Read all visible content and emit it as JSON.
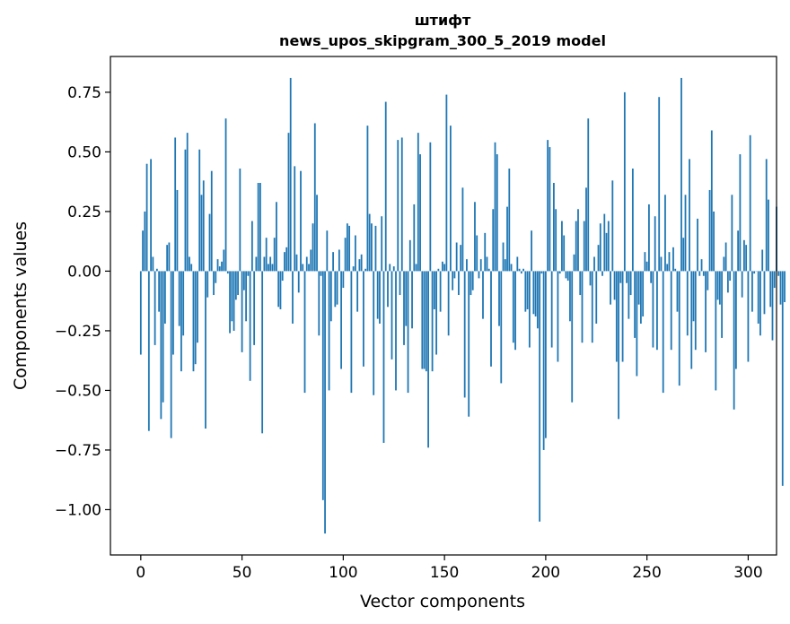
{
  "chart_data": {
    "type": "bar",
    "title_line1": "штифт",
    "title_line2": "news_upos_skipgram_300_5_2019 model",
    "xlabel": "Vector components",
    "ylabel": "Components values",
    "xlim": [
      -15,
      314
    ],
    "ylim": [
      -1.19,
      0.9
    ],
    "x_ticks": [
      0,
      50,
      100,
      150,
      200,
      250,
      300
    ],
    "x_tick_labels": [
      "0",
      "50",
      "100",
      "150",
      "200",
      "250",
      "300"
    ],
    "y_ticks": [
      0.75,
      0.5,
      0.25,
      0.0,
      -0.25,
      -0.5,
      -0.75,
      -1.0
    ],
    "y_tick_labels": [
      "0.75",
      "0.50",
      "0.25",
      "0.00",
      "−0.25",
      "−0.50",
      "−0.75",
      "−1.00"
    ],
    "bar_color": "#1f77b4",
    "values": [
      -0.35,
      0.17,
      0.25,
      0.45,
      -0.67,
      0.47,
      0.06,
      -0.31,
      0.01,
      -0.17,
      -0.62,
      -0.55,
      -0.22,
      0.11,
      0.12,
      -0.7,
      -0.35,
      0.56,
      0.34,
      -0.23,
      -0.42,
      -0.27,
      0.51,
      0.58,
      0.06,
      0.03,
      -0.42,
      -0.39,
      -0.3,
      0.51,
      0.32,
      0.38,
      -0.66,
      -0.11,
      0.24,
      0.42,
      -0.1,
      -0.05,
      0.05,
      0.02,
      0.04,
      0.09,
      0.64,
      -0.01,
      -0.26,
      -0.21,
      -0.25,
      -0.12,
      -0.1,
      0.43,
      -0.34,
      -0.08,
      -0.21,
      -0.02,
      -0.46,
      0.21,
      -0.31,
      0.06,
      0.37,
      0.37,
      -0.68,
      0.06,
      0.14,
      0.03,
      0.06,
      0.03,
      0.14,
      0.29,
      -0.15,
      -0.16,
      -0.04,
      0.08,
      0.1,
      0.58,
      0.81,
      -0.22,
      0.44,
      0.07,
      -0.09,
      0.42,
      0.03,
      -0.51,
      0.06,
      0.03,
      0.09,
      0.2,
      0.62,
      0.32,
      -0.27,
      -0.02,
      -0.96,
      -1.1,
      0.17,
      -0.5,
      -0.21,
      0.08,
      -0.15,
      -0.14,
      0.09,
      -0.41,
      -0.07,
      0.14,
      0.2,
      0.19,
      -0.51,
      0.02,
      0.15,
      -0.17,
      0.05,
      0.07,
      -0.4,
      0.01,
      0.61,
      0.24,
      0.2,
      -0.52,
      0.19,
      -0.2,
      -0.22,
      0.23,
      -0.72,
      0.71,
      -0.15,
      0.03,
      -0.37,
      0.02,
      -0.5,
      0.55,
      -0.1,
      0.56,
      -0.31,
      -0.23,
      -0.51,
      0.13,
      -0.24,
      0.28,
      0.03,
      0.58,
      0.49,
      -0.41,
      -0.41,
      -0.42,
      -0.74,
      0.54,
      -0.42,
      -0.16,
      -0.35,
      0.01,
      -0.17,
      0.04,
      0.03,
      0.74,
      -0.27,
      0.61,
      -0.08,
      -0.03,
      0.12,
      -0.1,
      0.11,
      0.35,
      -0.53,
      0.05,
      -0.61,
      -0.1,
      -0.08,
      0.29,
      0.15,
      -0.03,
      0.05,
      -0.2,
      0.16,
      0.06,
      0.01,
      -0.4,
      0.26,
      0.54,
      0.49,
      -0.23,
      -0.47,
      0.12,
      0.05,
      0.27,
      0.43,
      0.03,
      -0.3,
      -0.33,
      0.06,
      0.01,
      -0.01,
      0.01,
      -0.17,
      -0.16,
      -0.32,
      0.17,
      -0.18,
      -0.19,
      -0.24,
      -1.05,
      -0.01,
      -0.75,
      -0.7,
      0.55,
      0.52,
      -0.32,
      0.37,
      0.26,
      -0.38,
      -0.01,
      0.21,
      0.15,
      -0.03,
      -0.04,
      -0.21,
      -0.55,
      0.07,
      0.21,
      0.26,
      -0.1,
      -0.3,
      0.21,
      0.35,
      0.64,
      -0.06,
      -0.3,
      0.06,
      -0.22,
      0.11,
      0.2,
      -0.02,
      0.24,
      0.16,
      0.21,
      -0.14,
      0.38,
      -0.12,
      -0.38,
      -0.62,
      -0.05,
      -0.38,
      0.75,
      -0.05,
      -0.2,
      -0.1,
      0.43,
      -0.28,
      -0.44,
      -0.14,
      -0.22,
      -0.19,
      0.08,
      0.04,
      0.28,
      -0.05,
      -0.32,
      0.23,
      -0.33,
      0.73,
      0.06,
      -0.51,
      0.32,
      0.03,
      0.08,
      -0.33,
      0.1,
      0.01,
      -0.17,
      -0.48,
      0.81,
      0.14,
      0.32,
      -0.27,
      0.47,
      -0.41,
      -0.21,
      -0.33,
      0.22,
      -0.02,
      0.05,
      -0.02,
      -0.34,
      -0.08,
      0.34,
      0.59,
      0.25,
      -0.5,
      -0.12,
      -0.14,
      -0.28,
      0.06,
      0.12,
      -0.09,
      -0.04,
      0.32,
      -0.58,
      -0.41,
      0.17,
      0.49,
      -0.11,
      0.13,
      0.11,
      -0.38,
      0.57,
      -0.17,
      -0.01,
      0.0,
      -0.22,
      -0.27,
      0.09,
      -0.18,
      0.47,
      0.3,
      -0.15,
      -0.29,
      -0.07,
      0.27,
      -0.02,
      -0.14,
      -0.9,
      -0.13
    ]
  }
}
